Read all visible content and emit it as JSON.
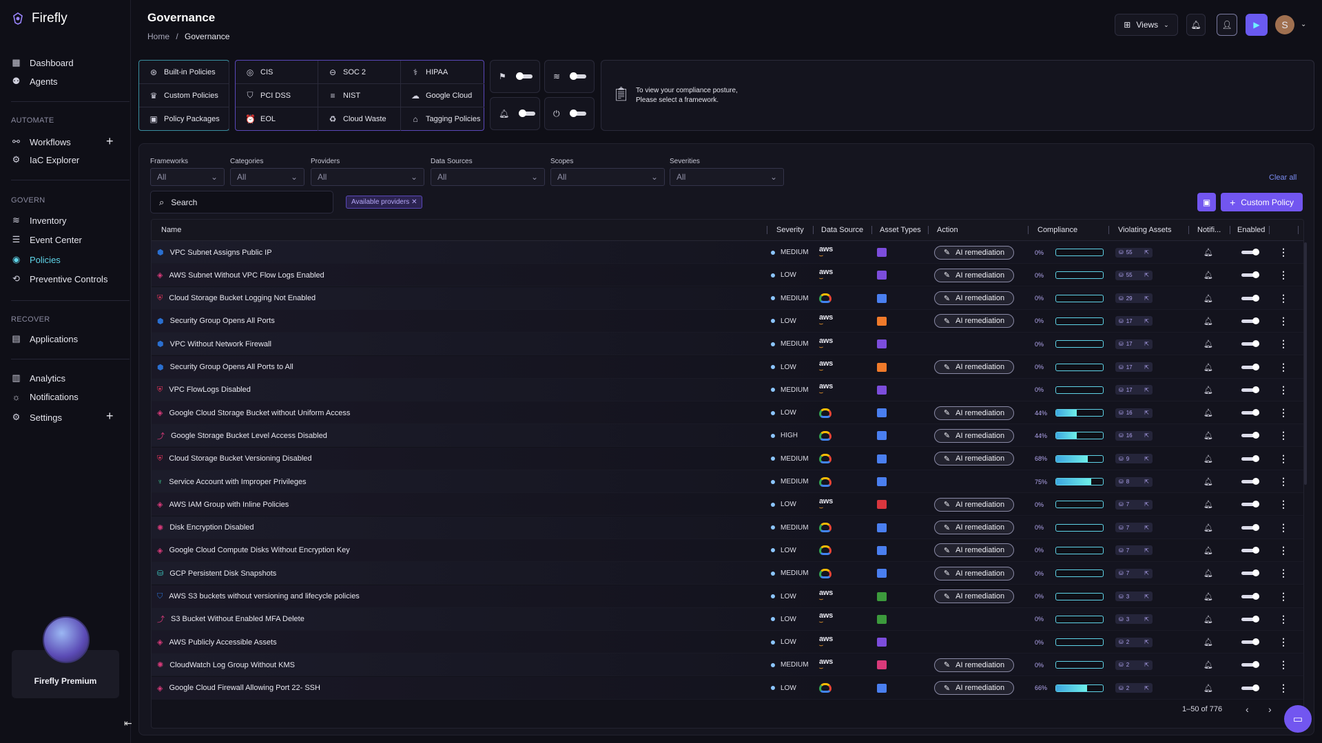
{
  "app": {
    "name": "Firefly"
  },
  "sidebar": {
    "top": [
      {
        "label": "Dashboard",
        "icon": "dashboard-icon"
      },
      {
        "label": "Agents",
        "icon": "agents-icon"
      }
    ],
    "automate_label": "AUTOMATE",
    "automate": [
      {
        "label": "Workflows",
        "icon": "workflows-icon"
      },
      {
        "label": "IaC Explorer",
        "icon": "iac-explorer-icon"
      }
    ],
    "govern_label": "GOVERN",
    "govern": [
      {
        "label": "Inventory",
        "icon": "inventory-icon"
      },
      {
        "label": "Event Center",
        "icon": "event-center-icon"
      },
      {
        "label": "Policies",
        "icon": "policies-icon"
      },
      {
        "label": "Preventive Controls",
        "icon": "preventive-controls-icon"
      }
    ],
    "recover_label": "RECOVER",
    "recover": [
      {
        "label": "Applications",
        "icon": "applications-icon"
      }
    ],
    "bottom": [
      {
        "label": "Analytics",
        "icon": "analytics-icon"
      },
      {
        "label": "Notifications",
        "icon": "notifications-icon"
      },
      {
        "label": "Settings",
        "icon": "settings-icon"
      }
    ],
    "premium_label": "Firefly Premium"
  },
  "header": {
    "title": "Governance",
    "breadcrumb_home": "Home",
    "breadcrumb_sep": "/",
    "breadcrumb_current": "Governance",
    "views_label": "Views",
    "avatar_letter": "S"
  },
  "policy_tabs": [
    {
      "label": "Built-in Policies",
      "icon": "built-in-policies-icon"
    },
    {
      "label": "Custom Policies",
      "icon": "custom-policies-icon"
    },
    {
      "label": "Policy Packages",
      "icon": "policy-packages-icon"
    }
  ],
  "frameworks": [
    {
      "label": "CIS",
      "icon": "cis-icon"
    },
    {
      "label": "SOC 2",
      "icon": "soc2-icon"
    },
    {
      "label": "HIPAA",
      "icon": "hipaa-icon"
    },
    {
      "label": "PCI DSS",
      "icon": "pci-dss-icon"
    },
    {
      "label": "NIST",
      "icon": "nist-icon"
    },
    {
      "label": "Google Cloud",
      "icon": "google-cloud-icon"
    },
    {
      "label": "EOL",
      "icon": "eol-icon"
    },
    {
      "label": "Cloud Waste",
      "icon": "cloud-waste-icon"
    },
    {
      "label": "Tagging Policies",
      "icon": "tagging-policies-icon"
    }
  ],
  "compliance_info": {
    "line1": "To view your compliance posture,",
    "line2": "Please select a framework."
  },
  "filters": [
    {
      "label": "Frameworks",
      "value": "All"
    },
    {
      "label": "Categories",
      "value": "All"
    },
    {
      "label": "Providers",
      "value": "All"
    },
    {
      "label": "Data Sources",
      "value": "All"
    },
    {
      "label": "Scopes",
      "value": "All"
    },
    {
      "label": "Severities",
      "value": "All"
    }
  ],
  "clear_all": "Clear all",
  "search": {
    "placeholder": "Search"
  },
  "active_chip": "Available providers ✕",
  "custom_policy_button": "Custom Policy",
  "table": {
    "columns": {
      "name": "Name",
      "severity": "Severity",
      "data_source": "Data Source",
      "asset_types": "Asset Types",
      "action": "Action",
      "compliance": "Compliance",
      "violating_assets": "Violating Assets",
      "notifications": "Notifi...",
      "enabled": "Enabled"
    },
    "ai_label": "AI remediation",
    "rows": [
      {
        "name": "VPC Subnet Assigns Public IP",
        "severity": "MEDIUM",
        "provider": "aws",
        "asset_color": "#7c4ddc",
        "ai": true,
        "compliance": "0%",
        "compliance_value": 0,
        "violating": "55"
      },
      {
        "name": "AWS Subnet Without VPC Flow Logs Enabled",
        "severity": "LOW",
        "provider": "aws",
        "asset_color": "#7c4ddc",
        "ai": true,
        "compliance": "0%",
        "compliance_value": 0,
        "violating": "55"
      },
      {
        "name": "Cloud Storage Bucket Logging Not Enabled",
        "severity": "MEDIUM",
        "provider": "gcp",
        "asset_color": "#4a7ff0",
        "ai": true,
        "compliance": "0%",
        "compliance_value": 0,
        "violating": "29"
      },
      {
        "name": "Security Group Opens All Ports",
        "severity": "LOW",
        "provider": "aws",
        "asset_color": "#f07a2a",
        "ai": true,
        "compliance": "0%",
        "compliance_value": 0,
        "violating": "17"
      },
      {
        "name": "VPC Without Network Firewall",
        "severity": "MEDIUM",
        "provider": "aws",
        "asset_color": "#7c4ddc",
        "ai": false,
        "compliance": "0%",
        "compliance_value": 0,
        "violating": "17"
      },
      {
        "name": "Security Group Opens All Ports to All",
        "severity": "LOW",
        "provider": "aws",
        "asset_color": "#f07a2a",
        "ai": true,
        "compliance": "0%",
        "compliance_value": 0,
        "violating": "17"
      },
      {
        "name": "VPC FlowLogs Disabled",
        "severity": "MEDIUM",
        "provider": "aws",
        "asset_color": "#7c4ddc",
        "ai": false,
        "compliance": "0%",
        "compliance_value": 0,
        "violating": "17"
      },
      {
        "name": "Google Cloud Storage Bucket without Uniform Access",
        "severity": "LOW",
        "provider": "gcp",
        "asset_color": "#4a7ff0",
        "ai": true,
        "compliance": "44%",
        "compliance_value": 44,
        "violating": "16"
      },
      {
        "name": "Google Storage Bucket Level Access Disabled",
        "severity": "HIGH",
        "provider": "gcp",
        "asset_color": "#4a7ff0",
        "ai": true,
        "compliance": "44%",
        "compliance_value": 44,
        "violating": "16"
      },
      {
        "name": "Cloud Storage Bucket Versioning Disabled",
        "severity": "MEDIUM",
        "provider": "gcp",
        "asset_color": "#4a7ff0",
        "ai": true,
        "compliance": "68%",
        "compliance_value": 68,
        "violating": "9"
      },
      {
        "name": "Service Account with Improper Privileges",
        "severity": "MEDIUM",
        "provider": "gcp",
        "asset_color": "#4a7ff0",
        "ai": false,
        "compliance": "75%",
        "compliance_value": 75,
        "violating": "8"
      },
      {
        "name": "AWS IAM Group with Inline Policies",
        "severity": "LOW",
        "provider": "aws",
        "asset_color": "#d9363e",
        "ai": true,
        "compliance": "0%",
        "compliance_value": 0,
        "violating": "7"
      },
      {
        "name": "Disk Encryption Disabled",
        "severity": "MEDIUM",
        "provider": "gcp",
        "asset_color": "#4a7ff0",
        "ai": true,
        "compliance": "0%",
        "compliance_value": 0,
        "violating": "7"
      },
      {
        "name": "Google Cloud Compute Disks Without Encryption Key",
        "severity": "LOW",
        "provider": "gcp",
        "asset_color": "#4a7ff0",
        "ai": true,
        "compliance": "0%",
        "compliance_value": 0,
        "violating": "7"
      },
      {
        "name": "GCP Persistent Disk Snapshots",
        "severity": "MEDIUM",
        "provider": "gcp",
        "asset_color": "#4a7ff0",
        "ai": true,
        "compliance": "0%",
        "compliance_value": 0,
        "violating": "7"
      },
      {
        "name": "AWS S3 buckets without versioning and lifecycle policies",
        "severity": "LOW",
        "provider": "aws",
        "asset_color": "#3c9a3c",
        "ai": true,
        "compliance": "0%",
        "compliance_value": 0,
        "violating": "3"
      },
      {
        "name": "S3 Bucket Without Enabled MFA Delete",
        "severity": "LOW",
        "provider": "aws",
        "asset_color": "#3c9a3c",
        "ai": false,
        "compliance": "0%",
        "compliance_value": 0,
        "violating": "3"
      },
      {
        "name": "AWS Publicly Accessible Assets",
        "severity": "LOW",
        "provider": "aws",
        "asset_color": "#7c4ddc",
        "ai": false,
        "compliance": "0%",
        "compliance_value": 0,
        "violating": "2"
      },
      {
        "name": "CloudWatch Log Group Without KMS",
        "severity": "MEDIUM",
        "provider": "aws",
        "asset_color": "#d93a7a",
        "ai": true,
        "compliance": "0%",
        "compliance_value": 0,
        "violating": "2"
      },
      {
        "name": "Google Cloud Firewall Allowing Port 22- SSH",
        "severity": "LOW",
        "provider": "gcp",
        "asset_color": "#4a7ff0",
        "ai": true,
        "compliance": "66%",
        "compliance_value": 66,
        "violating": "2"
      }
    ]
  },
  "pagination": {
    "range": "1–50 of 776"
  },
  "colors": {
    "accent": "#7256f0",
    "active_nav": "#5fd4e8",
    "background": "#0f0f17"
  }
}
